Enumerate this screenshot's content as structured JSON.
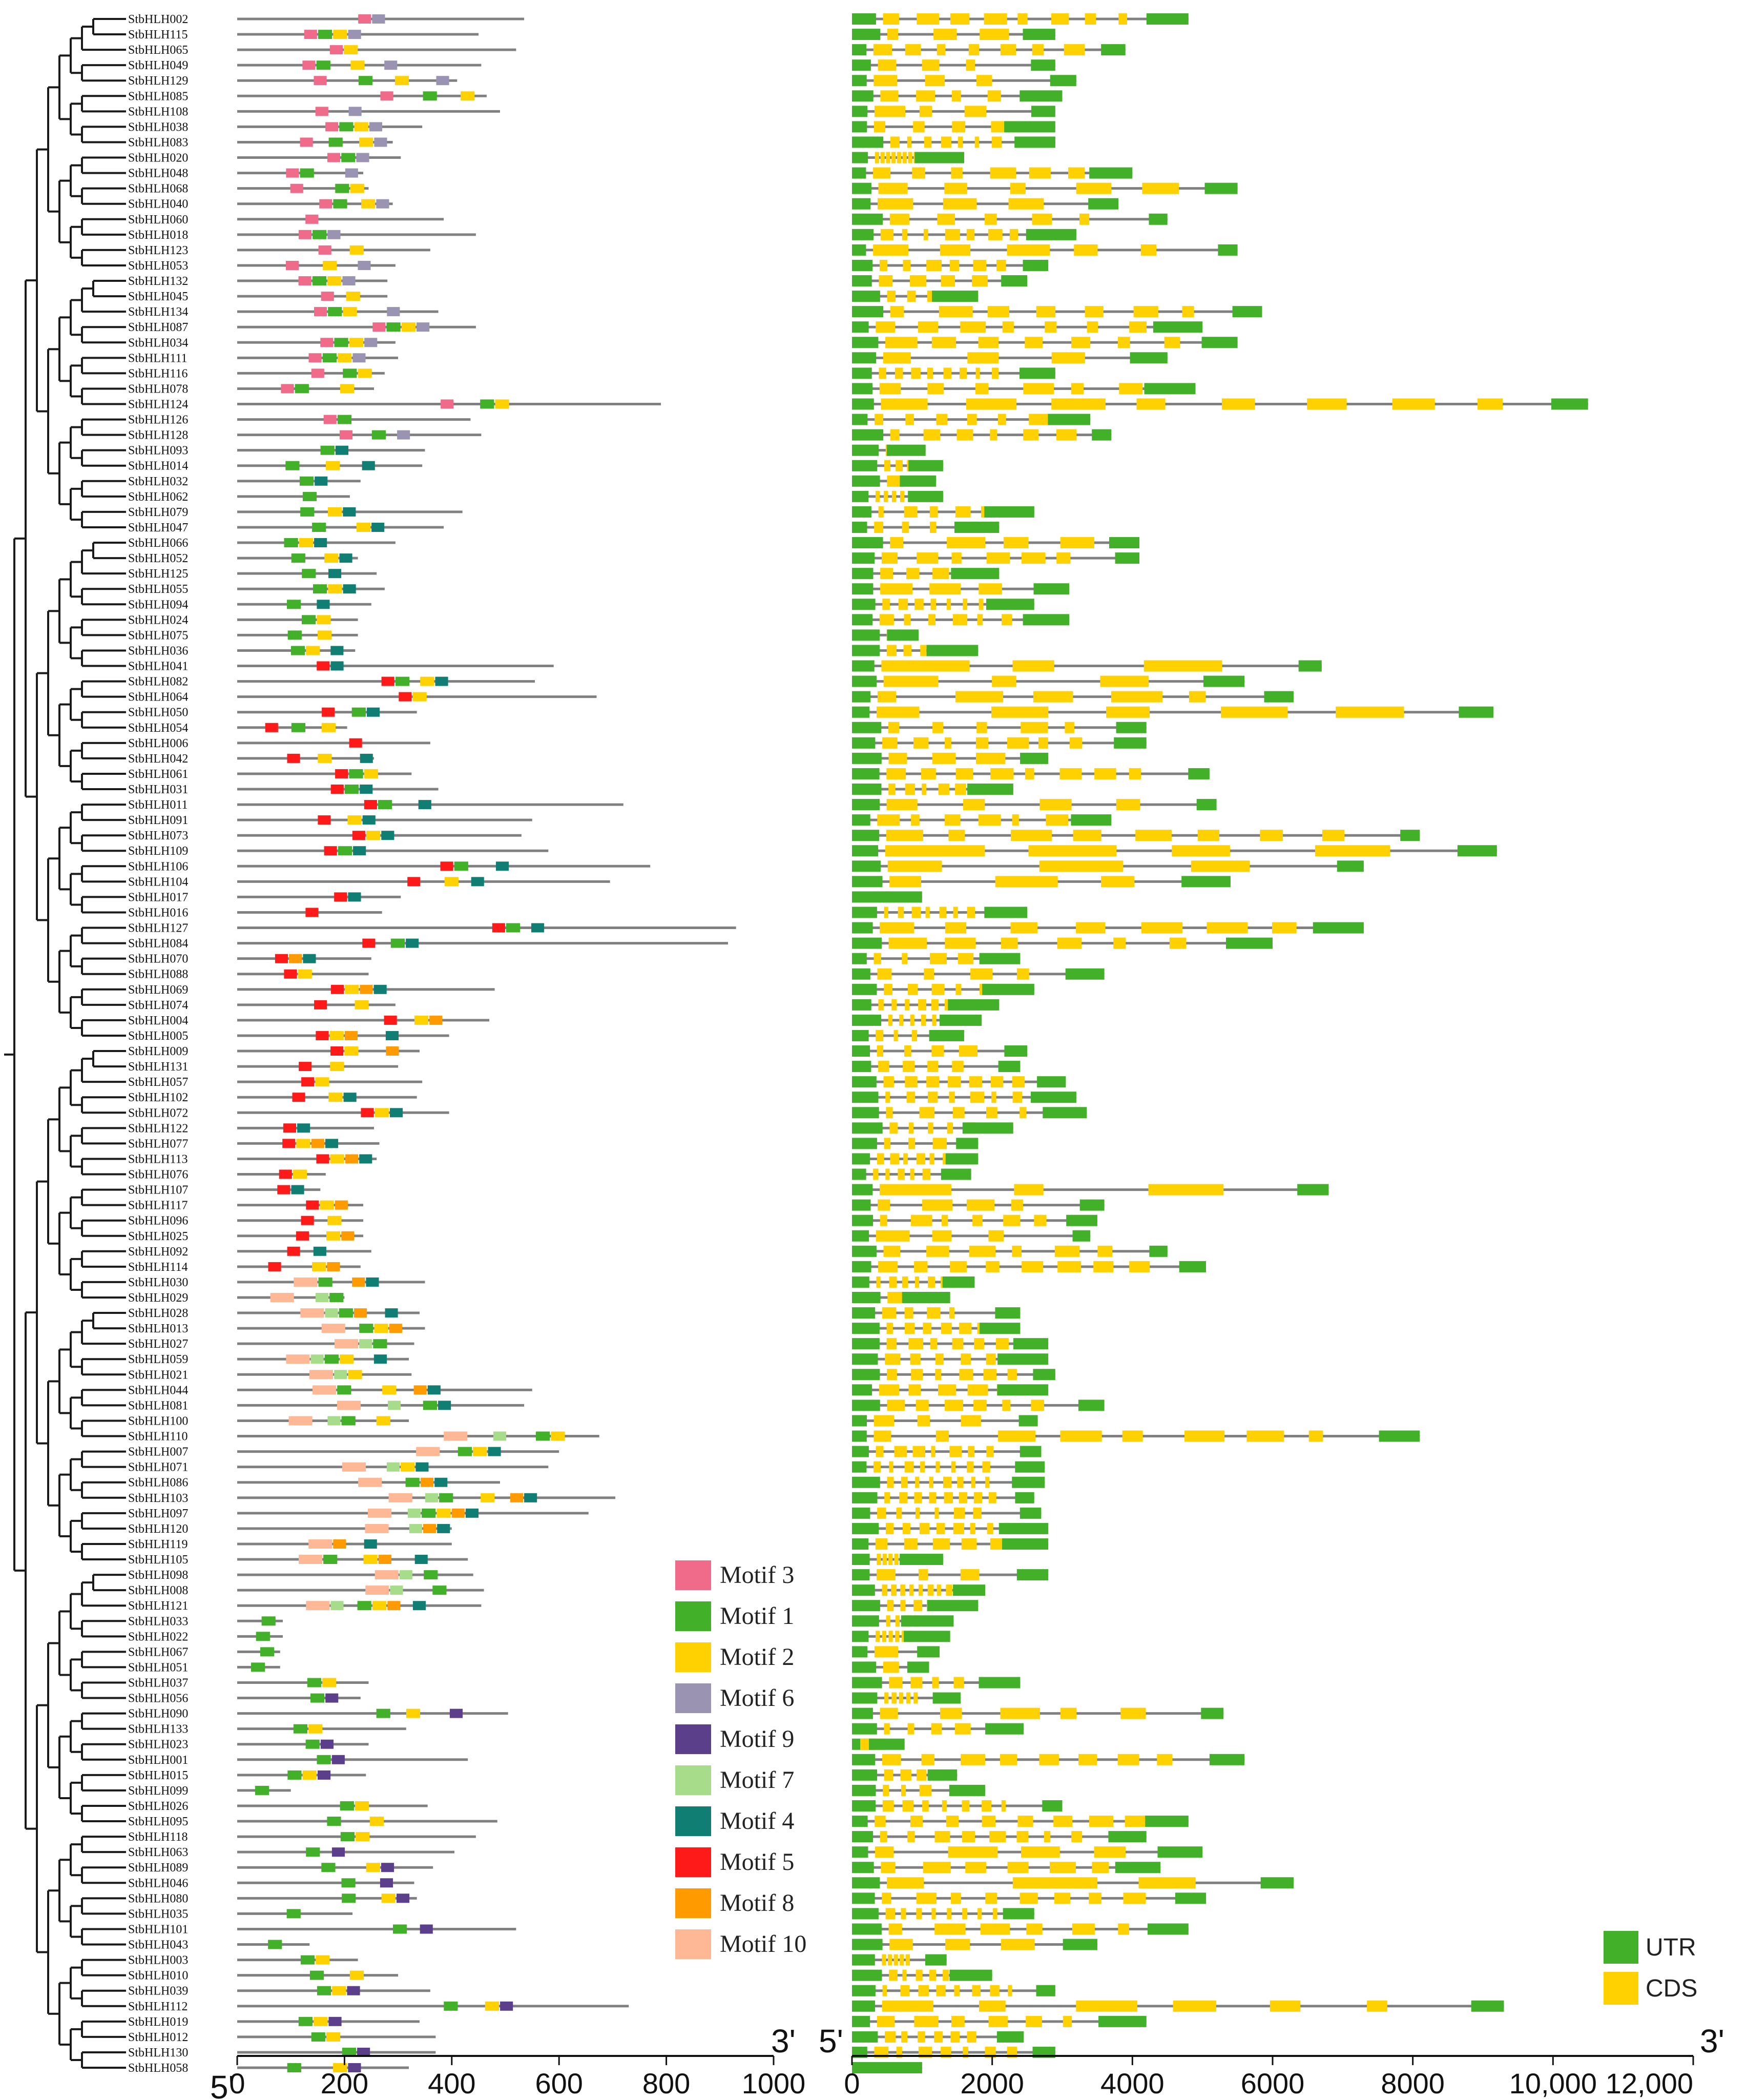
{
  "genes": [
    "StbHLH002",
    "StbHLH115",
    "StbHLH065",
    "StbHLH049",
    "StbHLH129",
    "StbHLH085",
    "StbHLH108",
    "StbHLH038",
    "StbHLH083",
    "StbHLH020",
    "StbHLH048",
    "StbHLH068",
    "StbHLH040",
    "StbHLH060",
    "StbHLH018",
    "StbHLH123",
    "StbHLH053",
    "StbHLH132",
    "StbHLH045",
    "StbHLH134",
    "StbHLH087",
    "StbHLH034",
    "StbHLH111",
    "StbHLH116",
    "StbHLH078",
    "StbHLH124",
    "StbHLH126",
    "StbHLH128",
    "StbHLH093",
    "StbHLH014",
    "StbHLH032",
    "StbHLH062",
    "StbHLH079",
    "StbHLH047",
    "StbHLH066",
    "StbHLH052",
    "StbHLH125",
    "StbHLH055",
    "StbHLH094",
    "StbHLH024",
    "StbHLH075",
    "StbHLH036",
    "StbHLH041",
    "StbHLH082",
    "StbHLH064",
    "StbHLH050",
    "StbHLH054",
    "StbHLH006",
    "StbHLH042",
    "StbHLH061",
    "StbHLH031",
    "StbHLH011",
    "StbHLH091",
    "StbHLH073",
    "StbHLH109",
    "StbHLH106",
    "StbHLH104",
    "StbHLH017",
    "StbHLH016",
    "StbHLH127",
    "StbHLH084",
    "StbHLH070",
    "StbHLH088",
    "StbHLH069",
    "StbHLH074",
    "StbHLH004",
    "StbHLH005",
    "StbHLH009",
    "StbHLH131",
    "StbHLH057",
    "StbHLH102",
    "StbHLH072",
    "StbHLH122",
    "StbHLH077",
    "StbHLH113",
    "StbHLH076",
    "StbHLH107",
    "StbHLH117",
    "StbHLH096",
    "StbHLH025",
    "StbHLH092",
    "StbHLH114",
    "StbHLH030",
    "StbHLH029",
    "StbHLH028",
    "StbHLH013",
    "StbHLH027",
    "StbHLH059",
    "StbHLH021",
    "StbHLH044",
    "StbHLH081",
    "StbHLH100",
    "StbHLH110",
    "StbHLH007",
    "StbHLH071",
    "StbHLH086",
    "StbHLH103",
    "StbHLH097",
    "StbHLH120",
    "StbHLH119",
    "StbHLH105",
    "StbHLH098",
    "StbHLH008",
    "StbHLH121",
    "StbHLH033",
    "StbHLH022",
    "StbHLH067",
    "StbHLH051",
    "StbHLH037",
    "StbHLH056",
    "StbHLH090",
    "StbHLH133",
    "StbHLH023",
    "StbHLH001",
    "StbHLH015",
    "StbHLH099",
    "StbHLH026",
    "StbHLH095",
    "StbHLH118",
    "StbHLH063",
    "StbHLH089",
    "StbHLH046",
    "StbHLH080",
    "StbHLH035",
    "StbHLH101",
    "StbHLH043",
    "StbHLH003",
    "StbHLH010",
    "StbHLH039",
    "StbHLH112",
    "StbHLH019",
    "StbHLH012",
    "StbHLH130",
    "StbHLH058"
  ],
  "protein_lengths": [
    535,
    450,
    520,
    455,
    410,
    465,
    490,
    345,
    290,
    305,
    235,
    245,
    290,
    385,
    445,
    360,
    295,
    280,
    280,
    375,
    445,
    295,
    300,
    275,
    255,
    790,
    435,
    455,
    350,
    345,
    230,
    210,
    420,
    385,
    295,
    225,
    260,
    275,
    250,
    225,
    225,
    220,
    590,
    555,
    670,
    335,
    205,
    360,
    255,
    325,
    375,
    720,
    550,
    530,
    580,
    770,
    695,
    305,
    270,
    930,
    915,
    250,
    245,
    480,
    295,
    470,
    395,
    340,
    300,
    345,
    335,
    395,
    255,
    265,
    260,
    165,
    155,
    235,
    235,
    235,
    250,
    230,
    350,
    200,
    340,
    350,
    330,
    320,
    325,
    550,
    535,
    320,
    675,
    600,
    580,
    490,
    705,
    655,
    400,
    400,
    430,
    440,
    460,
    455,
    85,
    85,
    80,
    80,
    245,
    230,
    505,
    315,
    245,
    430,
    240,
    100,
    355,
    485,
    445,
    405,
    365,
    330,
    335,
    215,
    520,
    135,
    225,
    300,
    360,
    730,
    340,
    370,
    370,
    320
  ],
  "motif_colors": {
    "motif_3": "#f06a8a",
    "motif_1": "#43b02a",
    "motif_2": "#ffd100",
    "motif_6": "#9b93b2",
    "motif_9": "#5b3f8a",
    "motif_7": "#a7dd8a",
    "motif_4": "#117e74",
    "motif_5": "#ff1a1a",
    "motif_8": "#ff9a00",
    "motif_10": "#ffb896"
  },
  "motif_legend": [
    {
      "name": "Motif 3",
      "color": "#f06a8a"
    },
    {
      "name": "Motif 1",
      "color": "#43b02a"
    },
    {
      "name": "Motif 2",
      "color": "#ffd100"
    },
    {
      "name": "Motif 6",
      "color": "#9b93b2"
    },
    {
      "name": "Motif 9",
      "color": "#5b3f8a"
    },
    {
      "name": "Motif 7",
      "color": "#a7dd8a"
    },
    {
      "name": "Motif 4",
      "color": "#117e74"
    },
    {
      "name": "Motif 5",
      "color": "#ff1a1a"
    },
    {
      "name": "Motif 8",
      "color": "#ff9a00"
    },
    {
      "name": "Motif 10",
      "color": "#ffb896"
    }
  ],
  "structure_legend": [
    {
      "name": "UTR",
      "color": "#43b02a"
    },
    {
      "name": "CDS",
      "color": "#ffd100"
    }
  ],
  "line_color": "#808080",
  "tree_color": "#1a1a1a",
  "motif_axis": {
    "ticks": [
      0,
      200,
      400,
      600,
      800,
      1000
    ],
    "tick_labels": [
      "0",
      "200",
      "400",
      "600",
      "800",
      "1000"
    ],
    "start_label": "5'",
    "end_label": "3'",
    "range": [
      0,
      1000
    ]
  },
  "gene_axis": {
    "ticks": [
      0,
      2000,
      4000,
      6000,
      8000,
      10000,
      12000
    ],
    "tick_labels": [
      "0",
      "2000",
      "4000",
      "6000",
      "8000",
      "10,000",
      "12,000"
    ],
    "start_label": "5'",
    "end_label": "3'",
    "range": [
      0,
      12000
    ]
  },
  "gene_lengths": [
    4800,
    2900,
    3900,
    2900,
    3200,
    3000,
    2900,
    2900,
    2900,
    1600,
    4000,
    5500,
    3800,
    4500,
    3200,
    5500,
    2800,
    2500,
    1800,
    5850,
    5000,
    5500,
    4500,
    2900,
    4900,
    10500,
    3400,
    3700,
    1050,
    1300,
    1200,
    1300,
    2600,
    2100,
    4100,
    4100,
    2100,
    3100,
    2600,
    3100,
    950,
    1800,
    6700,
    5600,
    6300,
    9150,
    4200,
    4200,
    2800,
    5100,
    2300,
    5200,
    3700,
    8100,
    9200,
    7300,
    5400,
    1000,
    2500,
    7300,
    6000,
    2400,
    3600,
    2600,
    2100,
    1850,
    1600,
    2500,
    2400,
    3050,
    3200,
    3350,
    2300,
    1800,
    1800,
    1700,
    6800,
    3600,
    3500,
    3400,
    4500,
    5050,
    1750,
    1400,
    2400,
    2400,
    2800,
    2800,
    2900,
    2800,
    3600,
    2650,
    8100,
    2700,
    2750,
    2750,
    2600,
    2700,
    2800,
    2800,
    1300,
    2800,
    1900,
    1800,
    1450,
    1400,
    1250,
    1100,
    2400,
    1550,
    5300,
    2450,
    750,
    5600,
    1500,
    1900,
    3000,
    4800,
    4200,
    5000,
    4400,
    6300,
    5050,
    2600,
    4800,
    3500,
    1350,
    2000,
    2900,
    9300,
    4200,
    2450,
    2900,
    1000
  ]
}
